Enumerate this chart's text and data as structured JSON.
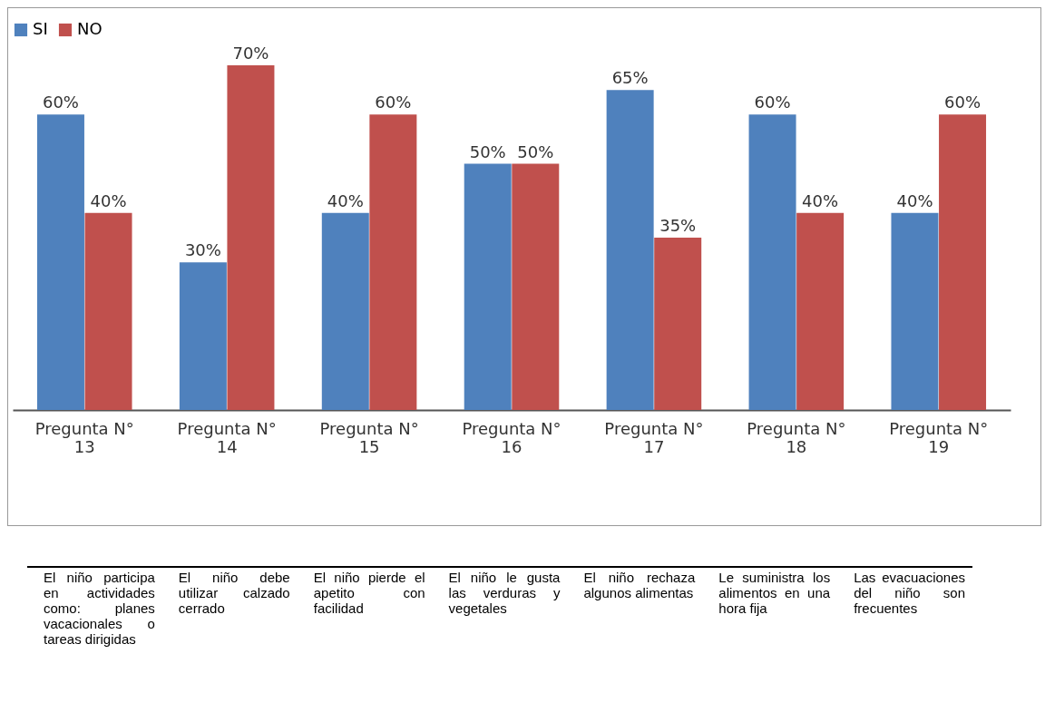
{
  "chart_data": {
    "type": "bar",
    "categories": [
      "Pregunta N° 13",
      "Pregunta N° 14",
      "Pregunta N° 15",
      "Pregunta N° 16",
      "Pregunta N° 17",
      "Pregunta N° 18",
      "Pregunta N° 19"
    ],
    "series": [
      {
        "name": "SI",
        "color": "#4f81bd",
        "values": [
          60,
          30,
          40,
          50,
          65,
          60,
          40
        ],
        "value_labels": [
          "60%",
          "30%",
          "40%",
          "50%",
          "65%",
          "60%",
          "40%"
        ]
      },
      {
        "name": "NO",
        "color": "#c0504d",
        "values": [
          40,
          70,
          60,
          50,
          35,
          40,
          60
        ],
        "value_labels": [
          "40%",
          "70%",
          "60%",
          "50%",
          "35%",
          "40%",
          "60%"
        ]
      }
    ],
    "legend": "top",
    "grid": false,
    "annotations": [
      "El niño participa en actividades como: planes vacacionales o tareas dirigidas",
      "El niño debe utilizar calzado cerrado",
      "El niño pierde el apetito con facilidad",
      "El niño le gusta las verduras y vegetales",
      "El niño rechaza algunos alimentas",
      "Le suministra los alimentos en una hora fija",
      "Las evacuaciones del niño son frecuentes"
    ]
  }
}
